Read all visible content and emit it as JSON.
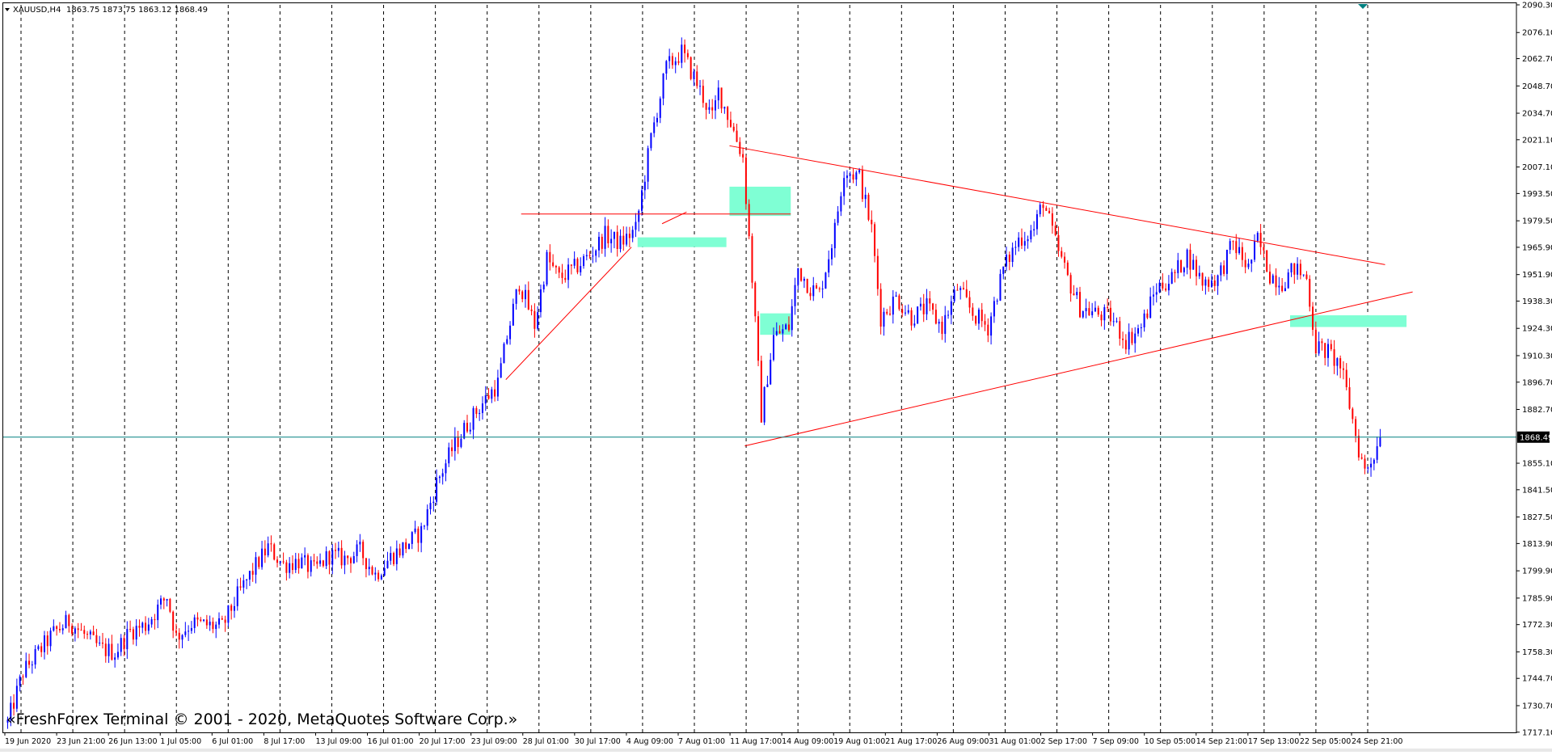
{
  "header": {
    "symbol": "XAUUSD,H4",
    "ohlc": "1863.75 1873.75 1863.12 1868.49"
  },
  "watermark": "«FreshForex Terminal © 2001 - 2020, MetaQuotes Software Corp.»",
  "colors": {
    "background": "#ffffff",
    "bull": "#0000ff",
    "bear": "#ff0000",
    "trendline": "#ff0000",
    "zone": "#7fffd4",
    "current_price_line": "#008080",
    "grid": "#000000",
    "axis_text": "#000000"
  },
  "chart_data": {
    "type": "candlestick",
    "symbol": "XAUUSD",
    "timeframe": "H4",
    "current_price": 1868.49,
    "current_price_label": "1868.49",
    "ylim": [
      1717.0,
      2090.3
    ],
    "y_ticks": [
      "2090.30",
      "2076.10",
      "2062.70",
      "2048.70",
      "2034.70",
      "2021.10",
      "2007.10",
      "1993.50",
      "1979.50",
      "1965.90",
      "1951.90",
      "1938.30",
      "1924.30",
      "1910.30",
      "1896.70",
      "1882.70",
      "1855.10",
      "1841.50",
      "1827.50",
      "1813.90",
      "1799.90",
      "1785.90",
      "1772.30",
      "1758.30",
      "1744.70",
      "1730.70",
      "1717.10"
    ],
    "x_ticks": [
      "19 Jun 2020",
      "23 Jun 21:00",
      "26 Jun 13:00",
      "1 Jul 05:00",
      "6 Jul 01:00",
      "8 Jul 17:00",
      "13 Jul 09:00",
      "16 Jul 01:00",
      "20 Jul 17:00",
      "23 Jul 09:00",
      "28 Jul 01:00",
      "30 Jul 17:00",
      "4 Aug 09:00",
      "7 Aug 01:00",
      "11 Aug 17:00",
      "14 Aug 09:00",
      "19 Aug 01:00",
      "21 Aug 17:00",
      "26 Aug 09:00",
      "31 Aug 01:00",
      "2 Sep 17:00",
      "7 Sep 09:00",
      "10 Sep 05:00",
      "14 Sep 21:00",
      "17 Sep 13:00",
      "22 Sep 05:00",
      "24 Sep 21:00"
    ],
    "anchors": [
      {
        "t": 0,
        "p": 1722
      },
      {
        "t": 5,
        "p": 1748
      },
      {
        "t": 15,
        "p": 1768
      },
      {
        "t": 20,
        "p": 1774
      },
      {
        "t": 30,
        "p": 1760
      },
      {
        "t": 35,
        "p": 1758
      },
      {
        "t": 40,
        "p": 1769
      },
      {
        "t": 45,
        "p": 1772
      },
      {
        "t": 52,
        "p": 1787
      },
      {
        "t": 55,
        "p": 1766
      },
      {
        "t": 60,
        "p": 1773
      },
      {
        "t": 70,
        "p": 1771
      },
      {
        "t": 75,
        "p": 1787
      },
      {
        "t": 80,
        "p": 1800
      },
      {
        "t": 85,
        "p": 1812
      },
      {
        "t": 90,
        "p": 1803
      },
      {
        "t": 95,
        "p": 1805
      },
      {
        "t": 100,
        "p": 1800
      },
      {
        "t": 105,
        "p": 1808
      },
      {
        "t": 110,
        "p": 1806
      },
      {
        "t": 115,
        "p": 1810
      },
      {
        "t": 120,
        "p": 1798
      },
      {
        "t": 125,
        "p": 1807
      },
      {
        "t": 130,
        "p": 1813
      },
      {
        "t": 135,
        "p": 1820
      },
      {
        "t": 140,
        "p": 1845
      },
      {
        "t": 145,
        "p": 1862
      },
      {
        "t": 150,
        "p": 1875
      },
      {
        "t": 155,
        "p": 1886
      },
      {
        "t": 160,
        "p": 1896
      },
      {
        "t": 163,
        "p": 1920
      },
      {
        "t": 167,
        "p": 1948
      },
      {
        "t": 172,
        "p": 1926
      },
      {
        "t": 176,
        "p": 1960
      },
      {
        "t": 180,
        "p": 1950
      },
      {
        "t": 185,
        "p": 1955
      },
      {
        "t": 190,
        "p": 1962
      },
      {
        "t": 195,
        "p": 1972
      },
      {
        "t": 200,
        "p": 1968
      },
      {
        "t": 205,
        "p": 1975
      },
      {
        "t": 210,
        "p": 2022
      },
      {
        "t": 215,
        "p": 2058
      },
      {
        "t": 220,
        "p": 2066
      },
      {
        "t": 225,
        "p": 2050
      },
      {
        "t": 230,
        "p": 2032
      },
      {
        "t": 232,
        "p": 2046
      },
      {
        "t": 236,
        "p": 2030
      },
      {
        "t": 240,
        "p": 2012
      },
      {
        "t": 243,
        "p": 1950
      },
      {
        "t": 246,
        "p": 1880
      },
      {
        "t": 250,
        "p": 1920
      },
      {
        "t": 255,
        "p": 1925
      },
      {
        "t": 258,
        "p": 1955
      },
      {
        "t": 262,
        "p": 1945
      },
      {
        "t": 265,
        "p": 1942
      },
      {
        "t": 270,
        "p": 1975
      },
      {
        "t": 273,
        "p": 2006
      },
      {
        "t": 278,
        "p": 2002
      },
      {
        "t": 282,
        "p": 1975
      },
      {
        "t": 285,
        "p": 1930
      },
      {
        "t": 290,
        "p": 1940
      },
      {
        "t": 295,
        "p": 1930
      },
      {
        "t": 300,
        "p": 1935
      },
      {
        "t": 305,
        "p": 1925
      },
      {
        "t": 310,
        "p": 1945
      },
      {
        "t": 315,
        "p": 1932
      },
      {
        "t": 320,
        "p": 1925
      },
      {
        "t": 325,
        "p": 1955
      },
      {
        "t": 330,
        "p": 1970
      },
      {
        "t": 335,
        "p": 1975
      },
      {
        "t": 338,
        "p": 1990
      },
      {
        "t": 342,
        "p": 1968
      },
      {
        "t": 346,
        "p": 1950
      },
      {
        "t": 350,
        "p": 1935
      },
      {
        "t": 355,
        "p": 1932
      },
      {
        "t": 360,
        "p": 1930
      },
      {
        "t": 365,
        "p": 1918
      },
      {
        "t": 370,
        "p": 1925
      },
      {
        "t": 375,
        "p": 1945
      },
      {
        "t": 380,
        "p": 1950
      },
      {
        "t": 385,
        "p": 1962
      },
      {
        "t": 390,
        "p": 1948
      },
      {
        "t": 395,
        "p": 1950
      },
      {
        "t": 400,
        "p": 1968
      },
      {
        "t": 405,
        "p": 1955
      },
      {
        "t": 408,
        "p": 1970
      },
      {
        "t": 412,
        "p": 1952
      },
      {
        "t": 416,
        "p": 1948
      },
      {
        "t": 420,
        "p": 1955
      },
      {
        "t": 424,
        "p": 1950
      },
      {
        "t": 427,
        "p": 1915
      },
      {
        "t": 431,
        "p": 1912
      },
      {
        "t": 435,
        "p": 1905
      },
      {
        "t": 438,
        "p": 1885
      },
      {
        "t": 441,
        "p": 1862
      },
      {
        "t": 443,
        "p": 1851
      },
      {
        "t": 446,
        "p": 1860
      },
      {
        "t": 448,
        "p": 1868
      }
    ],
    "trendlines": [
      {
        "t1": 214,
        "p1": 1978,
        "t2": 222,
        "p2": 1984
      },
      {
        "t1": 163,
        "p1": 1898,
        "t2": 204,
        "p2": 1966
      },
      {
        "t1": 168,
        "p1": 1983,
        "t2": 256,
        "p2": 1983
      },
      {
        "t1": 236,
        "p1": 2018,
        "t2": 450,
        "p2": 1957
      },
      {
        "t1": 241,
        "p1": 1864,
        "t2": 459,
        "p2": 1943
      }
    ],
    "zones": [
      {
        "t1": 206,
        "t2": 235,
        "p_top": 1971,
        "p_bottom": 1966
      },
      {
        "t1": 236,
        "t2": 256,
        "p_top": 1997,
        "p_bottom": 1982
      },
      {
        "t1": 246,
        "t2": 256,
        "p_top": 1932,
        "p_bottom": 1921
      },
      {
        "t1": 419,
        "t2": 457,
        "p_top": 1931,
        "p_bottom": 1925
      }
    ],
    "grid": "vertical-dashed",
    "total_bars": 460
  }
}
